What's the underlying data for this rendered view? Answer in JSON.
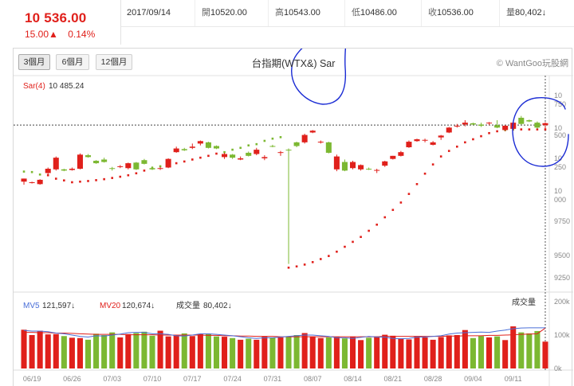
{
  "quote": {
    "last_price": "10 536.00",
    "change": "15.00▲",
    "change_pct": "0.14%"
  },
  "stats": {
    "date": "2017/09/14",
    "open_label": "開",
    "open": "10520.00",
    "high_label": "高",
    "high": "10543.00",
    "low_label": "低",
    "low": "10486.00",
    "close_label": "收",
    "close": "10536.00",
    "volume_label": "量",
    "volume": "80,402↓"
  },
  "range_tabs": [
    {
      "label": "3個月",
      "active": true
    },
    {
      "label": "6個月",
      "active": false
    },
    {
      "label": "12個月",
      "active": false
    }
  ],
  "chart_title": "台指期(WTX&) Sar",
  "watermark": "© WantGoo玩股網",
  "colors": {
    "up": "#e0201b",
    "down": "#7cb832",
    "sar": "#e0201b",
    "mv5": "#4a6fd8",
    "mv20": "#e0201b",
    "annotation": "#1a2bd4",
    "reference_line": "#444444"
  },
  "chart_data": {
    "type": "candlestick",
    "indicator": {
      "label": "Sar(4)",
      "value": "10 485.24"
    },
    "price_axis_ticks": [
      "10",
      "750",
      "10",
      "500",
      "10",
      "250",
      "10",
      "000",
      "9750",
      "9500",
      "9250"
    ],
    "price_ylim": [
      9200,
      10800
    ],
    "reference_price": 10521,
    "x_tick_labels": [
      "06/19",
      "06/26",
      "07/03",
      "07/10",
      "07/17",
      "07/24",
      "07/31",
      "08/07",
      "08/14",
      "08/21",
      "08/28",
      "09/04",
      "09/11"
    ],
    "candles": [
      {
        "o": 10060,
        "h": 10085,
        "l": 10035,
        "c": 10085
      },
      {
        "o": 10050,
        "h": 10060,
        "l": 10045,
        "c": 10055
      },
      {
        "o": 10040,
        "h": 10080,
        "l": 10035,
        "c": 10075
      },
      {
        "o": 10130,
        "h": 10175,
        "l": 10120,
        "c": 10165
      },
      {
        "o": 10160,
        "h": 10265,
        "l": 10150,
        "c": 10255
      },
      {
        "o": 10160,
        "h": 10165,
        "l": 10145,
        "c": 10150
      },
      {
        "o": 10155,
        "h": 10175,
        "l": 10150,
        "c": 10165
      },
      {
        "o": 10165,
        "h": 10290,
        "l": 10160,
        "c": 10280
      },
      {
        "o": 10275,
        "h": 10285,
        "l": 10255,
        "c": 10260
      },
      {
        "o": 10230,
        "h": 10235,
        "l": 10205,
        "c": 10210
      },
      {
        "o": 10240,
        "h": 10255,
        "l": 10215,
        "c": 10220
      },
      {
        "o": 10170,
        "h": 10180,
        "l": 10150,
        "c": 10165
      },
      {
        "o": 10185,
        "h": 10195,
        "l": 10170,
        "c": 10185
      },
      {
        "o": 10170,
        "h": 10215,
        "l": 10160,
        "c": 10210
      },
      {
        "o": 10215,
        "h": 10220,
        "l": 10155,
        "c": 10160
      },
      {
        "o": 10235,
        "h": 10245,
        "l": 10200,
        "c": 10205
      },
      {
        "o": 10170,
        "h": 10185,
        "l": 10155,
        "c": 10160
      },
      {
        "o": 10165,
        "h": 10180,
        "l": 10155,
        "c": 10170
      },
      {
        "o": 10175,
        "h": 10250,
        "l": 10170,
        "c": 10245
      },
      {
        "o": 10300,
        "h": 10345,
        "l": 10295,
        "c": 10330
      },
      {
        "o": 10325,
        "h": 10335,
        "l": 10310,
        "c": 10315
      },
      {
        "o": 10335,
        "h": 10370,
        "l": 10325,
        "c": 10345
      },
      {
        "o": 10370,
        "h": 10395,
        "l": 10355,
        "c": 10390
      },
      {
        "o": 10380,
        "h": 10385,
        "l": 10330,
        "c": 10335
      },
      {
        "o": 10350,
        "h": 10355,
        "l": 10325,
        "c": 10330
      },
      {
        "o": 10260,
        "h": 10295,
        "l": 10245,
        "c": 10285
      },
      {
        "o": 10280,
        "h": 10285,
        "l": 10245,
        "c": 10255
      },
      {
        "o": 10240,
        "h": 10265,
        "l": 10235,
        "c": 10250
      },
      {
        "o": 10295,
        "h": 10305,
        "l": 10265,
        "c": 10270
      },
      {
        "o": 10285,
        "h": 10335,
        "l": 10275,
        "c": 10320
      },
      {
        "o": 10250,
        "h": 10275,
        "l": 10235,
        "c": 10260
      },
      {
        "o": 10350,
        "h": 10360,
        "l": 10340,
        "c": 10345
      },
      {
        "o": 10300,
        "h": 10310,
        "l": 10270,
        "c": 10300
      },
      {
        "o": 10320,
        "h": 10330,
        "l": 9390,
        "c": 10315
      },
      {
        "o": 10380,
        "h": 10385,
        "l": 10340,
        "c": 10350
      },
      {
        "o": 10380,
        "h": 10450,
        "l": 10370,
        "c": 10440
      },
      {
        "o": 10460,
        "h": 10480,
        "l": 10455,
        "c": 10475
      },
      {
        "o": 10380,
        "h": 10395,
        "l": 10370,
        "c": 10385
      },
      {
        "o": 10380,
        "h": 10385,
        "l": 10290,
        "c": 10295
      },
      {
        "o": 10160,
        "h": 10280,
        "l": 10145,
        "c": 10265
      },
      {
        "o": 10220,
        "h": 10240,
        "l": 10145,
        "c": 10150
      },
      {
        "o": 10170,
        "h": 10230,
        "l": 10160,
        "c": 10220
      },
      {
        "o": 10160,
        "h": 10200,
        "l": 10150,
        "c": 10195
      },
      {
        "o": 10165,
        "h": 10175,
        "l": 10155,
        "c": 10160
      },
      {
        "o": 10150,
        "h": 10165,
        "l": 10130,
        "c": 10155
      },
      {
        "o": 10190,
        "h": 10230,
        "l": 10180,
        "c": 10225
      },
      {
        "o": 10245,
        "h": 10270,
        "l": 10240,
        "c": 10270
      },
      {
        "o": 10270,
        "h": 10310,
        "l": 10265,
        "c": 10300
      },
      {
        "o": 10340,
        "h": 10395,
        "l": 10335,
        "c": 10385
      },
      {
        "o": 10390,
        "h": 10410,
        "l": 10385,
        "c": 10405
      },
      {
        "o": 10395,
        "h": 10410,
        "l": 10380,
        "c": 10400
      },
      {
        "o": 10360,
        "h": 10390,
        "l": 10355,
        "c": 10380
      },
      {
        "o": 10420,
        "h": 10440,
        "l": 10400,
        "c": 10435
      },
      {
        "o": 10460,
        "h": 10505,
        "l": 10455,
        "c": 10500
      },
      {
        "o": 10510,
        "h": 10530,
        "l": 10500,
        "c": 10515
      },
      {
        "o": 10525,
        "h": 10560,
        "l": 10510,
        "c": 10540
      },
      {
        "o": 10535,
        "h": 10540,
        "l": 10520,
        "c": 10525
      },
      {
        "o": 10525,
        "h": 10540,
        "l": 10505,
        "c": 10515
      },
      {
        "o": 10535,
        "h": 10545,
        "l": 10520,
        "c": 10540
      },
      {
        "o": 10520,
        "h": 10560,
        "l": 10495,
        "c": 10500
      },
      {
        "o": 10480,
        "h": 10520,
        "l": 10470,
        "c": 10515
      },
      {
        "o": 10490,
        "h": 10545,
        "l": 10475,
        "c": 10540
      },
      {
        "o": 10580,
        "h": 10595,
        "l": 10525,
        "c": 10530
      },
      {
        "o": 10560,
        "h": 10565,
        "l": 10545,
        "c": 10550
      },
      {
        "o": 10540,
        "h": 10550,
        "l": 10490,
        "c": 10500
      },
      {
        "o": 10520,
        "h": 10543,
        "l": 10486,
        "c": 10536
      }
    ],
    "sar": [
      10142,
      10138,
      10118,
      10112,
      10084,
      10070,
      10055,
      10060,
      10065,
      10072,
      10080,
      10090,
      10100,
      10112,
      10128,
      10150,
      10172,
      10185,
      10195,
      10210,
      10224,
      10240,
      10255,
      10270,
      10288,
      10300,
      10320,
      10335,
      10355,
      10365,
      10392,
      10410,
      10422,
      9360,
      9370,
      9385,
      9405,
      9430,
      9455,
      9490,
      9530,
      9570,
      9610,
      9660,
      9710,
      9770,
      9830,
      9890,
      9960,
      10040,
      10125,
      10200,
      10265,
      10310,
      10345,
      10380,
      10405,
      10430,
      10455,
      10470,
      10480,
      10485,
      10485.24,
      10485,
      10485,
      10485
    ],
    "volume": {
      "label": "成交量",
      "mv5_label": "MV5",
      "mv5": "121,597↓",
      "mv20_label": "MV20",
      "mv20": "120,674↓",
      "current_label": "成交量",
      "current": "80,402↓",
      "axis_ticks": [
        "200k",
        "100k",
        "0k"
      ],
      "ylim": [
        0,
        200000
      ],
      "values": [
        116000,
        100000,
        113000,
        102000,
        103000,
        97000,
        92000,
        91000,
        86000,
        104000,
        100000,
        108000,
        93000,
        103000,
        106000,
        110000,
        98000,
        113000,
        96000,
        100000,
        105000,
        97000,
        103000,
        103000,
        96000,
        95000,
        91000,
        86000,
        89000,
        86000,
        96000,
        92000,
        93000,
        94000,
        100000,
        106000,
        96000,
        91000,
        93000,
        94000,
        90000,
        94000,
        85000,
        92000,
        96000,
        101000,
        98000,
        90000,
        87000,
        97000,
        93000,
        86000,
        94000,
        99000,
        100000,
        115000,
        91000,
        97000,
        93000,
        96000,
        85000,
        126000,
        108000,
        105000,
        112000,
        80402
      ],
      "mv5_values": [
        114000,
        112000,
        112000,
        110000,
        106000,
        104000,
        100000,
        96000,
        94000,
        98000,
        97000,
        100000,
        103000,
        107000,
        108000,
        108000,
        104000,
        104000,
        102000,
        98000,
        97000,
        100000,
        104000,
        104000,
        102000,
        100000,
        98000,
        95000,
        92000,
        90000,
        92000,
        92000,
        94000,
        96000,
        98000,
        100000,
        100000,
        98000,
        96000,
        92000,
        92000,
        90000,
        93000,
        96000,
        94000,
        94000,
        90000,
        89000,
        90000,
        94000,
        94000,
        96000,
        98000,
        103000,
        106000,
        107000,
        108000,
        109000,
        108000,
        112000,
        115000,
        119000,
        121000,
        121597,
        121597,
        121597
      ],
      "mv20_values": [
        108000,
        108000,
        107000,
        107000,
        106000,
        106000,
        105000,
        104000,
        103000,
        102000,
        102000,
        102000,
        102000,
        101000,
        101000,
        101000,
        101000,
        100000,
        100000,
        100000,
        100000,
        100000,
        100000,
        99000,
        99000,
        98000,
        98000,
        97000,
        97000,
        96000,
        96000,
        96000,
        95000,
        95000,
        95000,
        95000,
        95000,
        95000,
        95000,
        95000,
        95000,
        95000,
        95000,
        95000,
        95000,
        96000,
        96000,
        96000,
        96000,
        96000,
        96000,
        96000,
        96000,
        97000,
        97000,
        98000,
        98000,
        98000,
        99000,
        99000,
        100000,
        101000,
        102000,
        103000,
        104000,
        120674
      ]
    }
  }
}
